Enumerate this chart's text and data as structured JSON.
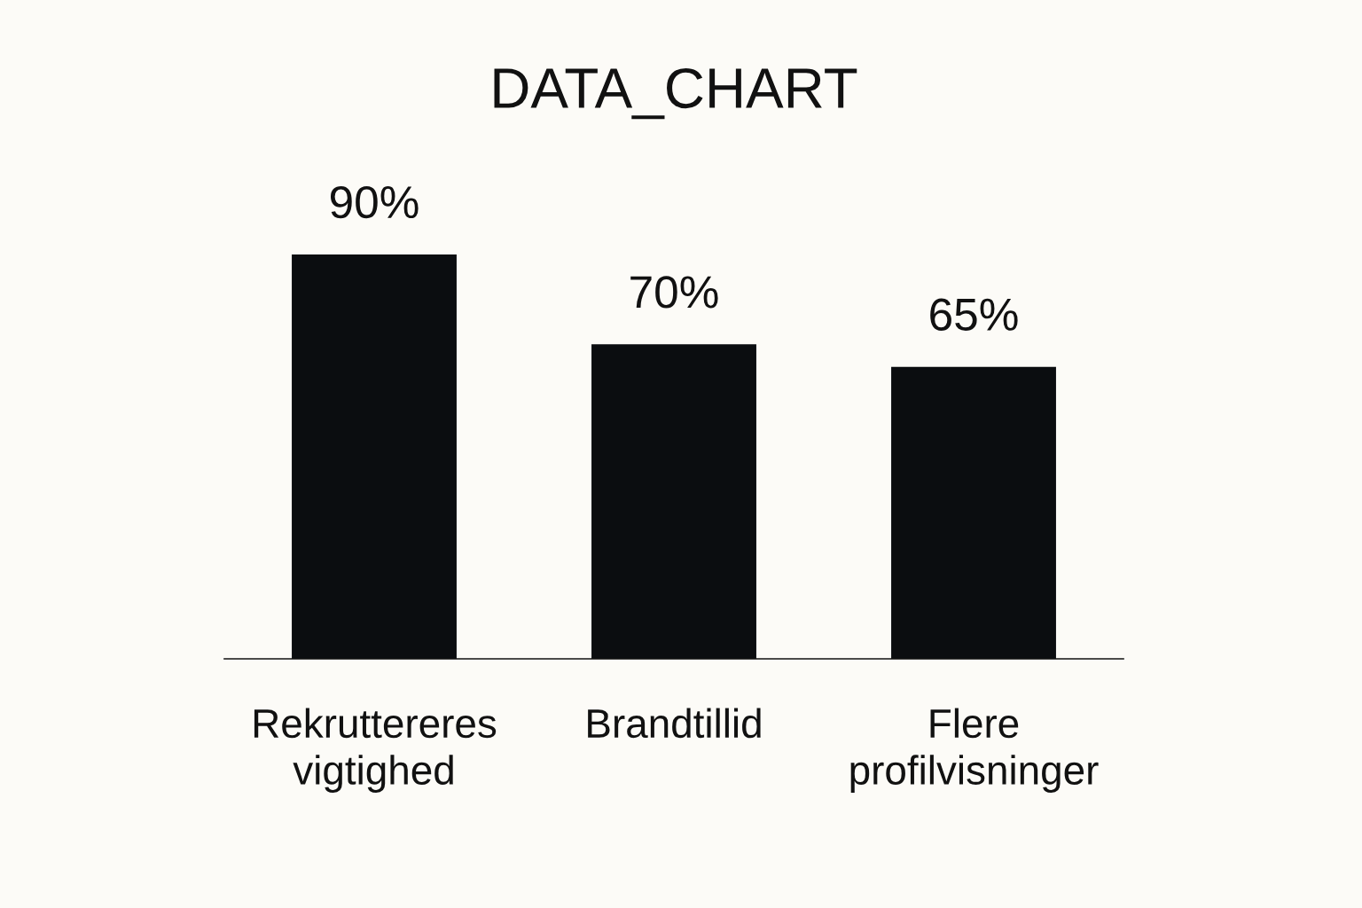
{
  "chart_data": {
    "type": "bar",
    "title": "DATA_CHART",
    "categories": [
      "Rekruttereres vigtighed",
      "Brandtillid",
      "Flere profilvisninger"
    ],
    "values": [
      90,
      70,
      65
    ],
    "color": "#0b0d10",
    "value_labels": [
      "90%",
      "70%",
      "65%"
    ]
  }
}
